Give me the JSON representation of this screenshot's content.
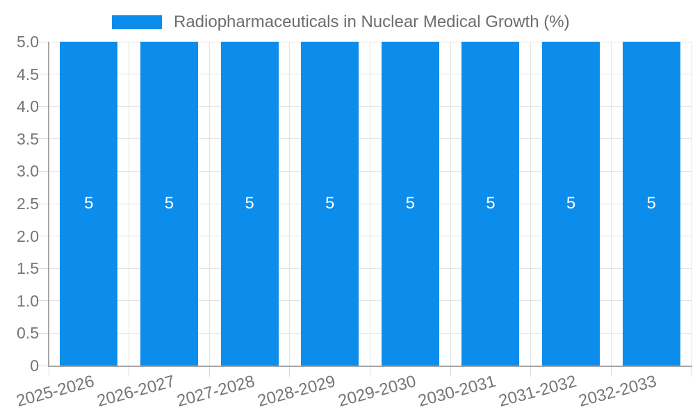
{
  "chart_data": {
    "type": "bar",
    "title": "Radiopharmaceuticals in Nuclear Medical Growth (%)",
    "categories": [
      "2025-2026",
      "2026-2027",
      "2027-2028",
      "2028-2029",
      "2029-2030",
      "2030-2031",
      "2031-2032",
      "2032-2033"
    ],
    "series": [
      {
        "name": "Radiopharmaceuticals in Nuclear Medical Growth (%)",
        "values": [
          5,
          5,
          5,
          5,
          5,
          5,
          5,
          5
        ],
        "bar_labels": [
          "5",
          "5",
          "5",
          "5",
          "5",
          "5",
          "5",
          "5"
        ]
      }
    ],
    "xlabel": "",
    "ylabel": "",
    "ylim": [
      0,
      5
    ],
    "ytick_labels": [
      "5.0",
      "4.5",
      "4.0",
      "3.5",
      "3.0",
      "2.5",
      "2.0",
      "1.5",
      "1.0",
      "0.5",
      "0"
    ],
    "grid": true,
    "legend_position": "top",
    "colors": {
      "bar": "#0d8deb",
      "grid": "#e3e3e3",
      "tick": "#d9d9d9",
      "axis": "#a6a6a6",
      "axis_text": "#757575",
      "title_text": "#6d6d6d",
      "annotation_text": "#ffffff",
      "background": "#ffffff"
    }
  }
}
